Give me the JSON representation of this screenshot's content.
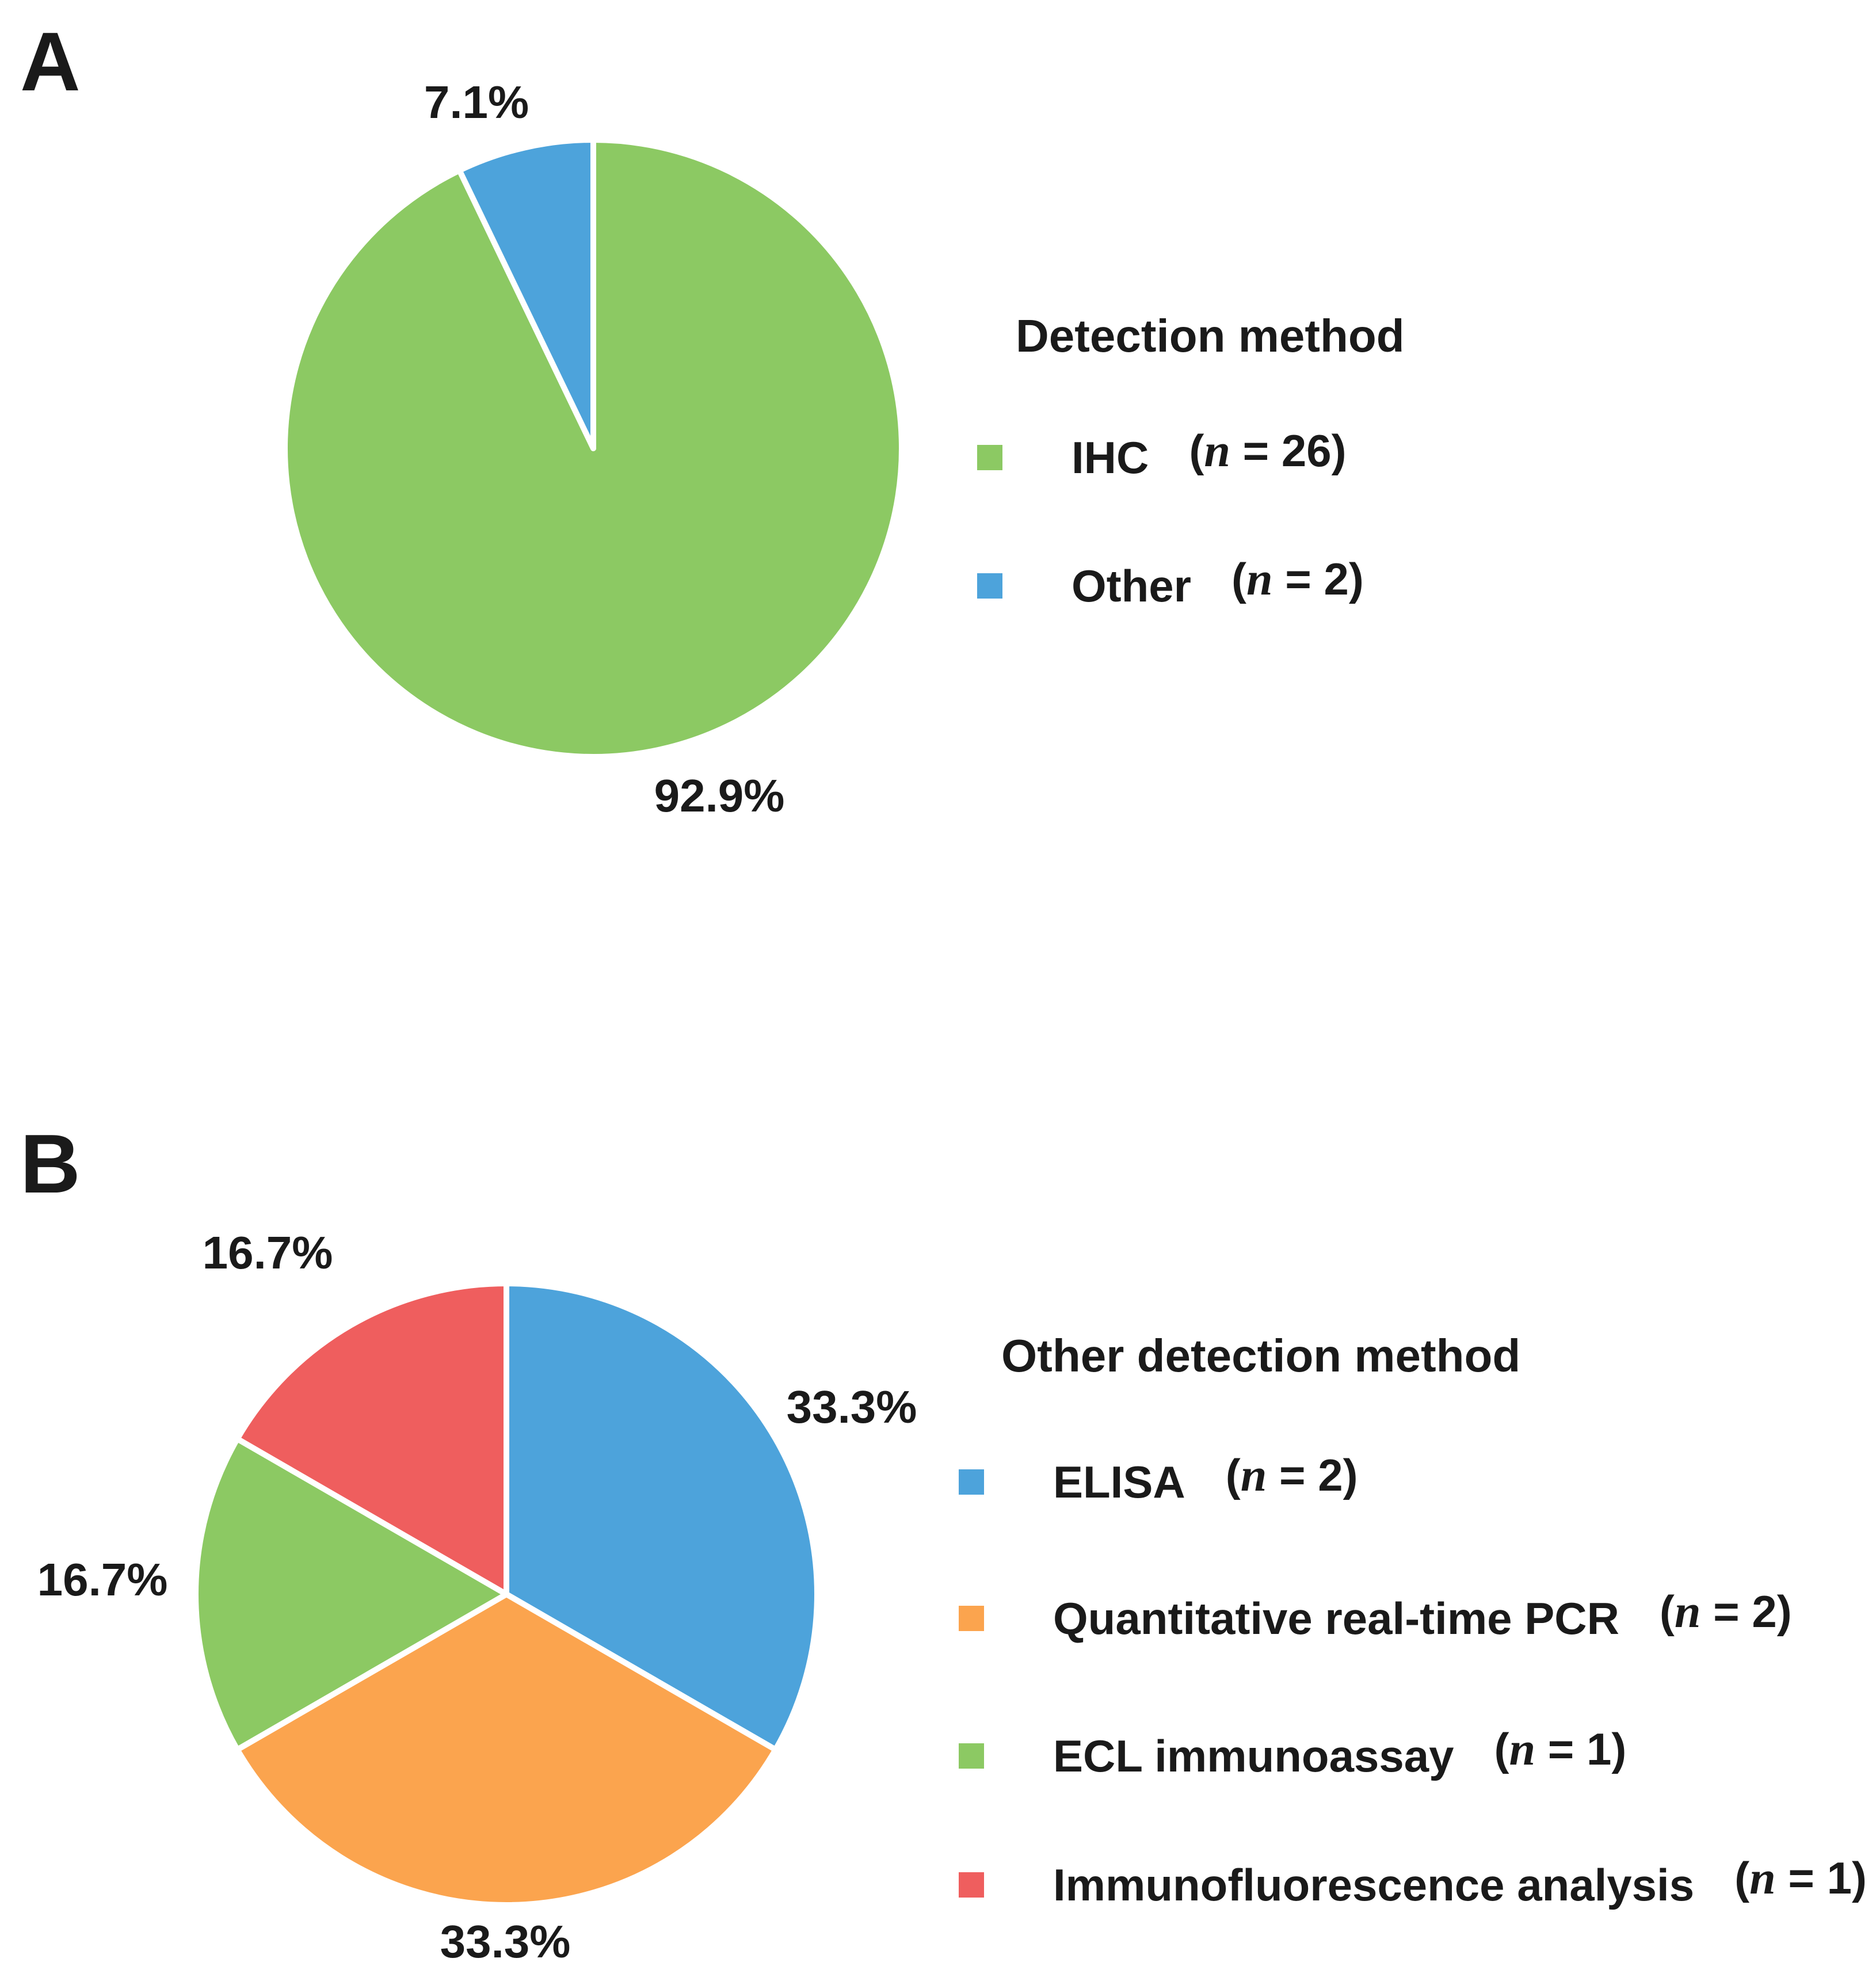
{
  "panel_a": {
    "label": "A",
    "legend_title": "Detection method",
    "slices": [
      {
        "id": "ihc",
        "legend_label": "IHC",
        "value": 26,
        "percent_label": "92.9%",
        "color": "#8cc963",
        "n_open": "(",
        "n_var": "n",
        "n_rest": " = 26)"
      },
      {
        "id": "other",
        "legend_label": "Other",
        "value": 2,
        "percent_label": "7.1%",
        "color": "#4da3db",
        "n_open": "(",
        "n_var": "n",
        "n_rest": " = 2)"
      }
    ]
  },
  "panel_b": {
    "label": "B",
    "legend_title": "Other detection method",
    "slices": [
      {
        "id": "elisa",
        "legend_label": "ELISA",
        "value": 2,
        "percent_label": "33.3%",
        "color": "#4da3db",
        "n_open": "(",
        "n_var": "n",
        "n_rest": " = 2)"
      },
      {
        "id": "qpcr",
        "legend_label": "Quantitative real-time PCR",
        "value": 2,
        "percent_label": "33.3%",
        "color": "#fba44e",
        "n_open": "(",
        "n_var": "n",
        "n_rest": " = 2)"
      },
      {
        "id": "ecl",
        "legend_label": "ECL immunoassay",
        "value": 1,
        "percent_label": "16.7%",
        "color": "#8cc963",
        "n_open": "(",
        "n_var": "n",
        "n_rest": " = 1)"
      },
      {
        "id": "if",
        "legend_label": "Immunofluorescence analysis",
        "value": 1,
        "percent_label": "16.7%",
        "color": "#ef5e5e",
        "n_open": "(",
        "n_var": "n",
        "n_rest": " = 1)"
      }
    ]
  },
  "chart_data": [
    {
      "type": "pie",
      "panel": "A",
      "title": "Detection method",
      "categories": [
        "IHC",
        "Other"
      ],
      "values": [
        26,
        2
      ],
      "percents": [
        92.9,
        7.1
      ],
      "percent_labels": [
        "92.9%",
        "7.1%"
      ],
      "colors": [
        "#8cc963",
        "#4da3db"
      ],
      "legend_entries": [
        "IHC (n = 26)",
        "Other (n = 2)"
      ],
      "legend_position": "right",
      "start_angle_deg": 0,
      "direction": "clockwise",
      "slice_border_color": "#ffffff"
    },
    {
      "type": "pie",
      "panel": "B",
      "title": "Other detection method",
      "categories": [
        "ELISA",
        "Quantitative real-time PCR",
        "ECL immunoassay",
        "Immunofluorescence analysis"
      ],
      "values": [
        2,
        2,
        1,
        1
      ],
      "percents": [
        33.3,
        33.3,
        16.7,
        16.7
      ],
      "percent_labels": [
        "33.3%",
        "33.3%",
        "16.7%",
        "16.7%"
      ],
      "colors": [
        "#4da3db",
        "#fba44e",
        "#8cc963",
        "#ef5e5e"
      ],
      "legend_entries": [
        "ELISA (n = 2)",
        "Quantitative real-time PCR (n = 2)",
        "ECL immunoassay (n = 1)",
        "Immunofluorescence analysis (n = 1)"
      ],
      "legend_position": "right",
      "start_angle_deg": 0,
      "direction": "clockwise",
      "slice_border_color": "#ffffff"
    }
  ]
}
